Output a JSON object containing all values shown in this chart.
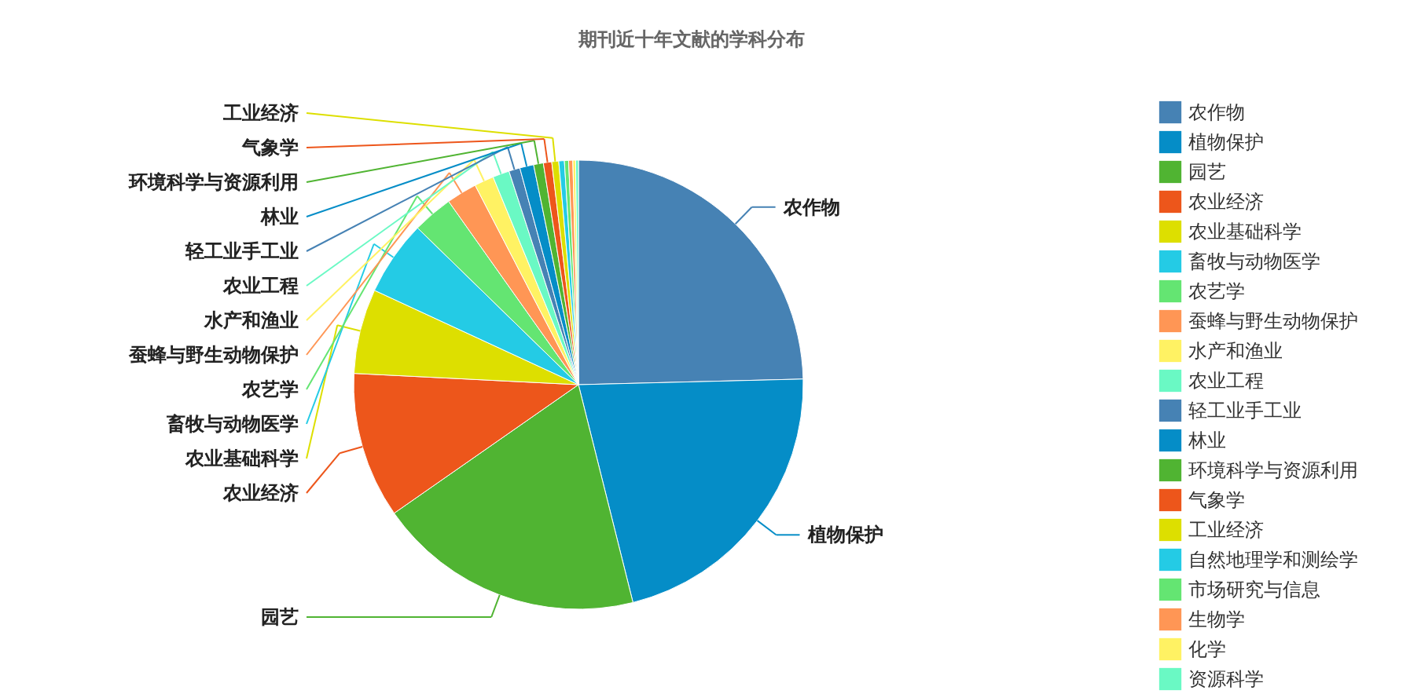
{
  "chart_data": {
    "type": "pie",
    "title": "期刊近十年文献的学科分布",
    "categories": [
      "农作物",
      "植物保护",
      "园艺",
      "农业经济",
      "农业基础科学",
      "畜牧与动物医学",
      "农艺学",
      "蚕蜂与野生动物保护",
      "水产和渔业",
      "农业工程",
      "轻工业手工业",
      "林业",
      "环境科学与资源利用",
      "气象学",
      "工业经济",
      "自然地理学和测绘学",
      "市场研究与信息",
      "生物学",
      "化学",
      "资源科学"
    ],
    "values": [
      24.6,
      21.5,
      19.2,
      10.5,
      6.1,
      5.4,
      2.9,
      2.2,
      1.4,
      1.2,
      0.8,
      1.0,
      0.7,
      0.6,
      0.5,
      0.4,
      0.3,
      0.3,
      0.2,
      0.2
    ],
    "colors": [
      "#4682b4",
      "#058dc7",
      "#50b432",
      "#ed561b",
      "#dddf00",
      "#24cbe5",
      "#64e572",
      "#ff9655",
      "#fff263",
      "#6af9c4",
      "#4682b4",
      "#058dc7",
      "#50b432",
      "#ed561b",
      "#dddf00",
      "#24cbe5",
      "#64e572",
      "#ff9655",
      "#fff263",
      "#6af9c4"
    ],
    "legend": "right"
  }
}
